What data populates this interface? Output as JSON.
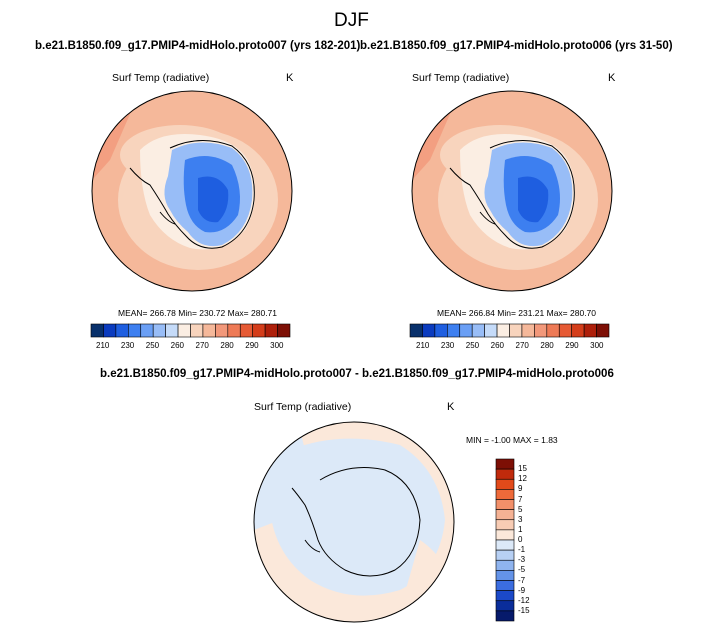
{
  "figure": {
    "title": "DJF"
  },
  "panels": [
    {
      "case_label": "b.e21.B1850.f09_g17.PMIP4-midHolo.proto007 (yrs 182-201)",
      "variable": "Surf Temp (radiative)",
      "units": "K",
      "stats": "MEAN= 266.78   Min= 230.72   Max= 280.71"
    },
    {
      "case_label": "b.e21.B1850.f09_g17.PMIP4-midHolo.proto006 (yrs 31-50)",
      "variable": "Surf Temp (radiative)",
      "units": "K",
      "stats": "MEAN= 266.84   Min= 231.21   Max= 280.70"
    }
  ],
  "colorbar_top": {
    "labels": [
      "210",
      "230",
      "250",
      "260",
      "270",
      "280",
      "290",
      "300"
    ],
    "colors": [
      "#08306b",
      "#0a3bbf",
      "#1e5ee0",
      "#3d7ff0",
      "#6a9ff5",
      "#98bdf7",
      "#c5dbf9",
      "#fbeee3",
      "#f8d4bd",
      "#f5b89a",
      "#f2987a",
      "#ee7a56",
      "#e65a34",
      "#d43d1a",
      "#ae1f0a",
      "#7d0f05"
    ]
  },
  "difference_panel": {
    "title": "b.e21.B1850.f09_g17.PMIP4-midHolo.proto007 - b.e21.B1850.f09_g17.PMIP4-midHolo.proto006",
    "variable": "Surf Temp (radiative)",
    "units": "K",
    "stats": "MIN =  -1.00 MAX =   1.83"
  },
  "colorbar_diff": {
    "labels": [
      "15",
      "12",
      "9",
      "7",
      "5",
      "3",
      "1",
      "0",
      "-1",
      "-3",
      "-5",
      "-7",
      "-9",
      "-12",
      "-15"
    ],
    "colors": [
      "#7d0f05",
      "#c02a0c",
      "#e24a1a",
      "#ee6a3a",
      "#f2906a",
      "#f5b294",
      "#f8ccb4",
      "#fbe8da",
      "#dce9f8",
      "#b7d0f4",
      "#8fb4ef",
      "#6493e8",
      "#3b6de0",
      "#1b49c8",
      "#0a2d9a",
      "#061a6b"
    ]
  }
}
